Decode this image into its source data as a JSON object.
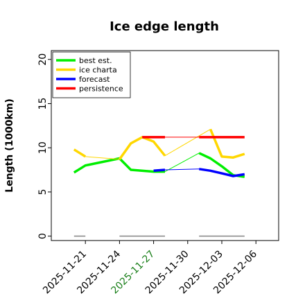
{
  "chart_data": {
    "type": "line",
    "title": "Ice edge length",
    "ylabel": "Length (1000km)",
    "xlabel": "",
    "ylim": [
      -0.5,
      21
    ],
    "yticks": [
      0,
      5,
      10,
      15,
      20
    ],
    "xlim": [
      "2025-11-18",
      "2025-12-08"
    ],
    "xticks": [
      {
        "label": "2025-11-21",
        "value": "2025-11-21",
        "color": "#000000"
      },
      {
        "label": "2025-11-24",
        "value": "2025-11-24",
        "color": "#000000"
      },
      {
        "label": "2025-11-27",
        "value": "2025-11-27",
        "color": "#1a7f1a"
      },
      {
        "label": "2025-11-30",
        "value": "2025-11-30",
        "color": "#000000"
      },
      {
        "label": "2025-12-03",
        "value": "2025-12-03",
        "color": "#000000"
      },
      {
        "label": "2025-12-06",
        "value": "2025-12-06",
        "color": "#000000"
      }
    ],
    "legend": {
      "position": "top-left",
      "entries": [
        {
          "label": "best est.",
          "color": "#00ee00"
        },
        {
          "label": "ice charta",
          "color": "#ffd700"
        },
        {
          "label": "forecast",
          "color": "#0000ff"
        },
        {
          "label": "persistence",
          "color": "#ff0000"
        }
      ]
    },
    "series": [
      {
        "name": "best est.",
        "color": "#00ee00",
        "segments": [
          [
            [
              "2025-11-20",
              7.2
            ],
            [
              "2025-11-21",
              8.0
            ],
            [
              "2025-11-24",
              8.8
            ],
            [
              "2025-11-25",
              7.5
            ],
            [
              "2025-11-27",
              7.3
            ],
            [
              "2025-11-28",
              7.3
            ]
          ],
          [
            [
              "2025-12-01",
              9.4
            ],
            [
              "2025-12-02",
              8.8
            ],
            [
              "2025-12-03",
              7.9
            ],
            [
              "2025-12-04",
              6.9
            ],
            [
              "2025-12-05",
              6.7
            ]
          ]
        ],
        "thin_links": [
          [
            [
              "2025-11-28",
              7.3
            ],
            [
              "2025-12-01",
              9.4
            ]
          ]
        ]
      },
      {
        "name": "ice charta",
        "color": "#ffd700",
        "segments": [
          [
            [
              "2025-11-20",
              9.8
            ],
            [
              "2025-11-21",
              9.0
            ]
          ],
          [
            [
              "2025-11-24",
              8.7
            ],
            [
              "2025-11-25",
              10.5
            ],
            [
              "2025-11-26",
              11.2
            ],
            [
              "2025-11-27",
              10.7
            ],
            [
              "2025-11-28",
              9.1
            ]
          ],
          [
            [
              "2025-12-02",
              12.1
            ],
            [
              "2025-12-03",
              9.0
            ],
            [
              "2025-12-04",
              8.9
            ],
            [
              "2025-12-05",
              9.3
            ]
          ]
        ],
        "thin_links": [
          [
            [
              "2025-11-21",
              9.0
            ],
            [
              "2025-11-24",
              8.7
            ]
          ],
          [
            [
              "2025-11-28",
              9.1
            ],
            [
              "2025-12-02",
              12.1
            ]
          ]
        ]
      },
      {
        "name": "forecast",
        "color": "#0000ff",
        "segments": [
          [
            [
              "2025-11-27",
              7.4
            ],
            [
              "2025-11-28",
              7.5
            ]
          ],
          [
            [
              "2025-12-01",
              7.6
            ],
            [
              "2025-12-02",
              7.4
            ],
            [
              "2025-12-03",
              7.1
            ],
            [
              "2025-12-04",
              6.8
            ],
            [
              "2025-12-05",
              7.0
            ]
          ]
        ],
        "thin_links": [
          [
            [
              "2025-11-28",
              7.5
            ],
            [
              "2025-12-01",
              7.6
            ]
          ]
        ]
      },
      {
        "name": "persistence",
        "color": "#ff0000",
        "segments": [
          [
            [
              "2025-11-26",
              11.2
            ],
            [
              "2025-11-28",
              11.2
            ]
          ],
          [
            [
              "2025-12-01",
              11.2
            ],
            [
              "2025-12-05",
              11.2
            ]
          ]
        ],
        "thin_links": [
          [
            [
              "2025-11-28",
              11.2
            ],
            [
              "2025-12-01",
              11.2
            ]
          ]
        ]
      }
    ],
    "gray_marks": [
      [
        [
          "2025-11-20",
          0
        ],
        [
          "2025-11-21",
          0
        ]
      ],
      [
        [
          "2025-11-24",
          0
        ],
        [
          "2025-11-28",
          0
        ]
      ],
      [
        [
          "2025-12-01",
          0
        ],
        [
          "2025-12-05",
          0
        ]
      ]
    ]
  }
}
